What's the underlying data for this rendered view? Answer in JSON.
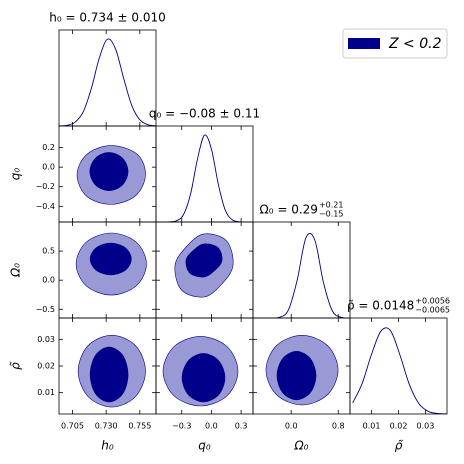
{
  "chart_data": {
    "type": "corner",
    "legend": {
      "label": "Z < 0.2",
      "position": "upper right"
    },
    "colors": {
      "line": "#00008b",
      "inner": "#00008b",
      "outer": "#9999d6"
    },
    "marginal_ylim": [
      0,
      1.1
    ],
    "parameters": [
      {
        "label": "h₀",
        "title": {
          "main": "h₀ = 0.734 ± 0.010"
        },
        "lim": [
          0.695,
          0.767
        ],
        "xticks": [
          0.705,
          {
            "value": 0.73,
            "label": "0.730"
          },
          0.755
        ],
        "yticks": [],
        "marginal": {
          "x": [
            0.695,
            0.701,
            0.707,
            0.713,
            0.719,
            0.725,
            0.731,
            0.737,
            0.743,
            0.749,
            0.755,
            0.761,
            0.767
          ],
          "y": [
            0.001,
            0.008,
            0.044,
            0.164,
            0.43,
            0.783,
            0.995,
            0.882,
            0.546,
            0.236,
            0.071,
            0.015,
            0.002
          ]
        }
      },
      {
        "label": "q₀",
        "title": {
          "main": "q₀ = −0.08 ± 0.11"
        },
        "lim": [
          -0.56,
          0.42
        ],
        "xticks": [
          {
            "value": -0.3,
            "label": "−0.3"
          },
          {
            "value": 0,
            "label": "0.0"
          },
          0.3
        ],
        "yticks": [
          0.2,
          {
            "value": 0,
            "label": "0.0"
          },
          {
            "value": -0.2,
            "label": "−0.2"
          },
          {
            "value": -0.4,
            "label": "−0.4"
          }
        ],
        "marginal": {
          "x": [
            -0.56,
            -0.49,
            -0.42,
            -0.35,
            -0.28,
            -0.21,
            -0.14,
            -0.07,
            0.0,
            0.07,
            0.14,
            0.21,
            0.28,
            0.35,
            0.42
          ],
          "y": [
            0,
            0,
            0.002,
            0.015,
            0.089,
            0.325,
            0.726,
            0.995,
            0.835,
            0.43,
            0.135,
            0.026,
            0.003,
            0,
            0
          ]
        }
      },
      {
        "label": "Ω₀",
        "title": {
          "main": "Ω₀ = 0.29",
          "upper": "+0.21",
          "lower": "−0.15"
        },
        "lim": [
          -0.65,
          1.0
        ],
        "xticks": [
          {
            "value": 0,
            "label": "0.0"
          },
          0.8
        ],
        "yticks": [
          0.5,
          {
            "value": 0,
            "label": "0.0"
          },
          {
            "value": -0.5,
            "label": "−0.5"
          }
        ],
        "marginal": {
          "x": [
            -0.65,
            -0.5,
            -0.35,
            -0.2,
            -0.05,
            0.1,
            0.25,
            0.4,
            0.55,
            0.7,
            0.85,
            1.0
          ],
          "y": [
            0,
            0,
            0.001,
            0.008,
            0.089,
            0.43,
            0.919,
            0.895,
            0.402,
            0.081,
            0.008,
            0
          ]
        }
      },
      {
        "label": "ρ̃",
        "title": {
          "main": "ρ̃ = 0.0148",
          "upper": "+0.0056",
          "lower": "−0.0065"
        },
        "lim": [
          0.002,
          0.038
        ],
        "xticks": [
          0.01,
          0.02,
          0.03
        ],
        "yticks": [
          0.01,
          0.02,
          0.03
        ],
        "marginal": {
          "x": [
            0.003,
            0.0065,
            0.01,
            0.0135,
            0.017,
            0.0205,
            0.024,
            0.0275,
            0.031,
            0.0345,
            0.038
          ],
          "y": [
            0.127,
            0.349,
            0.685,
            0.95,
            0.956,
            0.679,
            0.34,
            0.122,
            0.031,
            0.006,
            0.001
          ]
        }
      }
    ],
    "contours": [
      [],
      [
        {
          "outer": {
            "x": [
              0.7592,
              0.753,
              0.7338,
              0.7158,
              0.7084,
              0.7158,
              0.7338,
              0.7518
            ],
            "y": [
              -0.08,
              0.132,
              0.22,
              0.132,
              -0.08,
              -0.3,
              -0.38,
              -0.292
            ]
          },
          "inner": {
            "x": [
              0.7463,
              0.7421,
              0.7321,
              0.7221,
              0.7179,
              0.7221,
              0.7321,
              0.7421
            ],
            "y": [
              -0.045,
              0.093,
              0.15,
              0.093,
              -0.045,
              -0.183,
              -0.24,
              -0.183
            ]
          }
        }
      ],
      [
        {
          "outer": {
            "x": [
              0.7599,
              0.7523,
              0.7338,
              0.7153,
              0.7077,
              0.7153,
              0.7338,
              0.7523
            ],
            "y": [
              0.278,
              0.655,
              0.811,
              0.655,
              0.278,
              -0.099,
              -0.255,
              -0.099
            ]
          },
          "inner": {
            "x": [
              0.7487,
              0.7442,
              0.7334,
              0.7226,
              0.7181,
              0.7226,
              0.7334,
              0.7442
            ],
            "y": [
              0.364,
              0.558,
              0.639,
              0.558,
              0.364,
              0.17,
              0.089,
              0.17
            ]
          }
        },
        {
          "outer": {
            "x": [
              0.218,
              0.153,
              -0.075,
              -0.251,
              -0.368,
              -0.303,
              -0.075,
              0.101
            ],
            "y": [
              0.253,
              0.675,
              0.795,
              0.579,
              0.253,
              -0.169,
              -0.289,
              -0.073
            ]
          },
          "inner": {
            "x": [
              0.107,
              0.066,
              -0.075,
              -0.184,
              -0.257,
              -0.216,
              -0.075,
              0.034
            ],
            "y": [
              0.339,
              0.56,
              0.623,
              0.51,
              0.339,
              0.118,
              0.055,
              0.168
            ]
          }
        }
      ],
      [
        {
          "outer": {
            "x": [
              0.7592,
              0.7519,
              0.7342,
              0.7165,
              0.7092,
              0.7165,
              0.7342,
              0.7519
            ],
            "y": [
              0.0181,
              0.0276,
              0.0315,
              0.0276,
              0.0181,
              0.0086,
              0.0046,
              0.0086
            ]
          },
          "inner": {
            "x": [
              0.7463,
              0.7422,
              0.7322,
              0.7222,
              0.7181,
              0.7222,
              0.7322,
              0.7422
            ],
            "y": [
              0.0168,
              0.0241,
              0.0271,
              0.0241,
              0.0168,
              0.0095,
              0.0065,
              0.0095
            ]
          }
        },
        {
          "outer": {
            "x": [
              0.268,
              0.158,
              -0.11,
              -0.378,
              -0.489,
              -0.378,
              -0.11,
              0.158
            ],
            "y": [
              0.01805,
              0.02728,
              0.0311,
              0.02728,
              0.01805,
              0.00882,
              0.005,
              0.00882
            ]
          },
          "inner": {
            "x": [
              0.137,
              0.073,
              -0.08,
              -0.233,
              -0.297,
              -0.233,
              -0.08,
              0.073
            ],
            "y": [
              0.0156,
              0.022,
              0.0247,
              0.022,
              0.0156,
              0.0092,
              0.0065,
              0.0092
            ]
          }
        },
        {
          "outer": {
            "x": [
              0.797,
              0.617,
              0.184,
              -0.249,
              -0.429,
              -0.249,
              0.184,
              0.617
            ],
            "y": [
              0.01845,
              0.02768,
              0.0315,
              0.02768,
              0.01845,
              0.00922,
              0.0054,
              0.00922
            ]
          },
          "inner": {
            "x": [
              0.422,
              0.325,
              0.09,
              -0.145,
              -0.242,
              -0.145,
              0.09,
              0.325
            ],
            "y": [
              0.0164,
              0.0228,
              0.0255,
              0.0228,
              0.0164,
              0.01,
              0.0073,
              0.01
            ]
          }
        }
      ]
    ]
  }
}
